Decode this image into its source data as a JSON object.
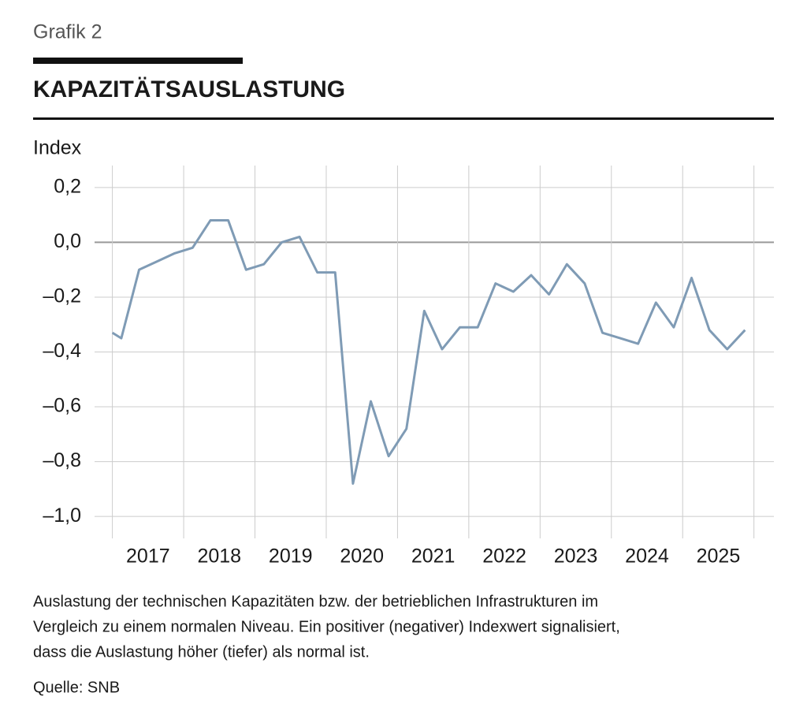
{
  "chart_data": {
    "type": "line",
    "label": "Grafik 2",
    "title": "KAPAZITÄTSAUSLASTUNG",
    "y_axis_label": "Index",
    "x": [
      2017.0,
      2017.125,
      2017.375,
      2017.625,
      2017.875,
      2018.125,
      2018.375,
      2018.625,
      2018.875,
      2019.125,
      2019.375,
      2019.625,
      2019.875,
      2020.125,
      2020.375,
      2020.625,
      2020.875,
      2021.125,
      2021.375,
      2021.625,
      2021.875,
      2022.125,
      2022.375,
      2022.625,
      2022.875,
      2023.125,
      2023.375,
      2023.625,
      2023.875,
      2024.125,
      2024.375,
      2024.625,
      2024.875,
      2025.125,
      2025.375,
      2025.625,
      2025.875
    ],
    "series": [
      {
        "name": "Kapazitätsauslastung",
        "color": "#7f9bb5",
        "values": [
          -0.33,
          -0.35,
          -0.1,
          -0.07,
          -0.04,
          -0.02,
          0.08,
          0.08,
          -0.1,
          -0.08,
          0.0,
          0.02,
          -0.11,
          -0.11,
          -0.88,
          -0.58,
          -0.78,
          -0.68,
          -0.25,
          -0.39,
          -0.31,
          -0.31,
          -0.15,
          -0.18,
          -0.12,
          -0.19,
          -0.08,
          -0.15,
          -0.33,
          -0.35,
          -0.37,
          -0.22,
          -0.31,
          -0.13,
          -0.32,
          -0.39,
          -0.32
        ]
      }
    ],
    "xlim": [
      2016.75,
      2026.28
    ],
    "xticks": [
      {
        "value": 2017.5,
        "label": "2017"
      },
      {
        "value": 2018.5,
        "label": "2018"
      },
      {
        "value": 2019.5,
        "label": "2019"
      },
      {
        "value": 2020.5,
        "label": "2020"
      },
      {
        "value": 2021.5,
        "label": "2021"
      },
      {
        "value": 2022.5,
        "label": "2022"
      },
      {
        "value": 2023.5,
        "label": "2023"
      },
      {
        "value": 2024.5,
        "label": "2024"
      },
      {
        "value": 2025.5,
        "label": "2025"
      }
    ],
    "xgrid": [
      2017,
      2018,
      2019,
      2020,
      2021,
      2022,
      2023,
      2024,
      2025,
      2026
    ],
    "ylim": [
      -1.08,
      0.28
    ],
    "yticks": [
      {
        "value": 0.2,
        "label": "0,2"
      },
      {
        "value": 0.0,
        "label": "0,0"
      },
      {
        "value": -0.2,
        "label": "–0,2"
      },
      {
        "value": -0.4,
        "label": "–0,4"
      },
      {
        "value": -0.6,
        "label": "–0,6"
      },
      {
        "value": -0.8,
        "label": "–0,8"
      },
      {
        "value": -1.0,
        "label": "–1,0"
      }
    ],
    "grid": true,
    "note_lines": [
      "Auslastung der technischen Kapazitäten bzw. der betrieblichen Infrastrukturen im",
      "Vergleich zu einem normalen Niveau. Ein positiver (negativer) Indexwert signalisiert,",
      "dass die Auslastung höher (tiefer) als normal ist."
    ],
    "source": "Quelle: SNB"
  }
}
